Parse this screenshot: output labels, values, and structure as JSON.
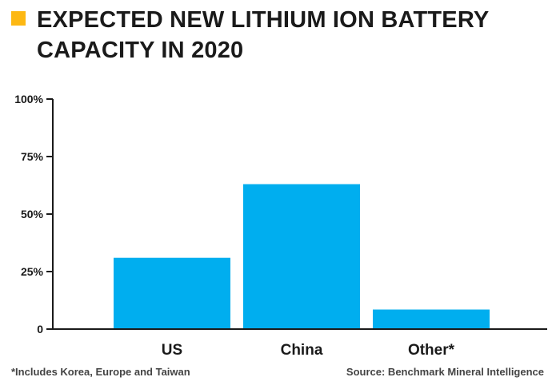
{
  "colors": {
    "accent": "#fdb813",
    "bar": "#00aeef",
    "axis": "#1a1a1a"
  },
  "chart_data": {
    "type": "bar",
    "title": "EXPECTED NEW LITHIUM ION BATTERY CAPACITY IN 2020",
    "categories": [
      "US",
      "China",
      "Other*"
    ],
    "values": [
      31,
      63,
      8.5
    ],
    "ylim": [
      0,
      100
    ],
    "yticks": [
      0,
      25,
      50,
      75,
      100
    ],
    "ytick_labels": [
      "0",
      "25%",
      "50%",
      "75%",
      "100%"
    ],
    "xlabel": "",
    "ylabel": "",
    "grid": false,
    "legend": "none"
  },
  "footnote": "*Includes Korea, Europe and Taiwan",
  "source": "Source: Benchmark Mineral Intelligence"
}
